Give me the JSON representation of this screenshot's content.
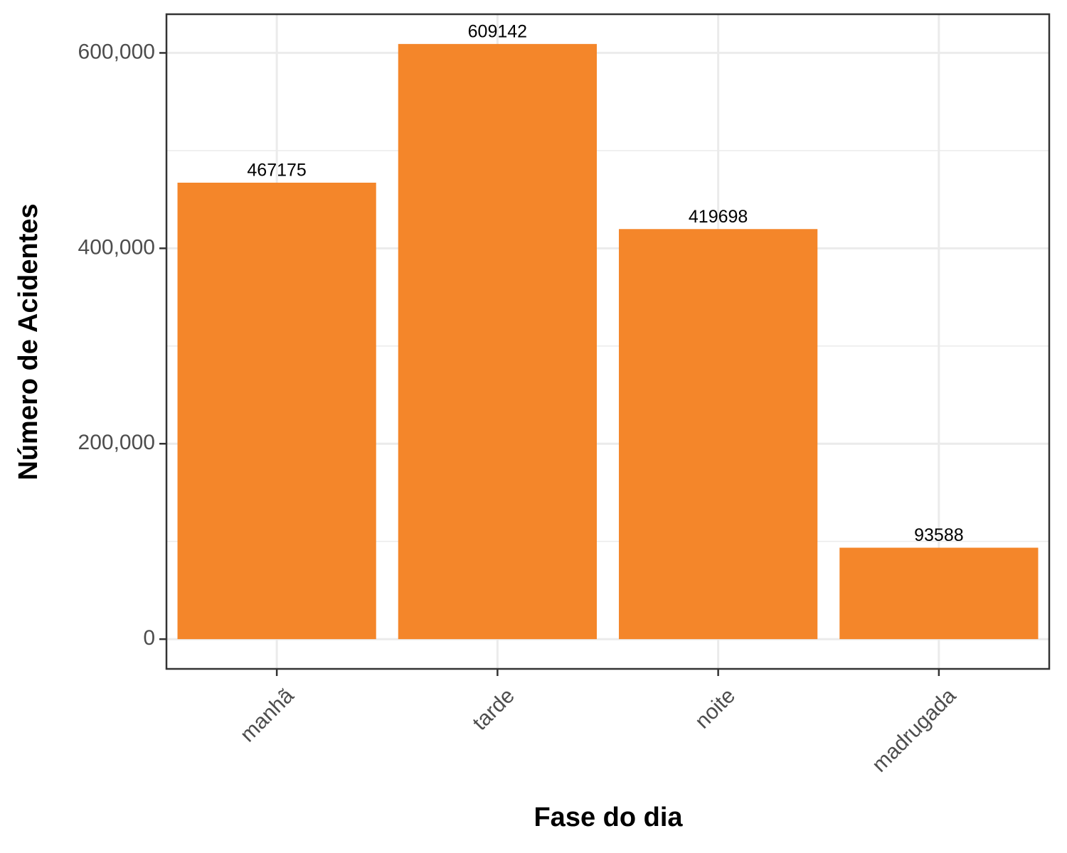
{
  "chart_data": {
    "type": "bar",
    "x_label": "Fase do dia",
    "y_label": "Número de Acidentes",
    "categories": [
      "manhã",
      "tarde",
      "noite",
      "madrugada"
    ],
    "values": [
      467175,
      609142,
      419698,
      93588
    ],
    "color": "#f4862a",
    "ylim": [
      -30457,
      639599
    ],
    "yticks": [
      {
        "value": 0,
        "label": "0"
      },
      {
        "value": 200000,
        "label": "200,000"
      },
      {
        "value": 400000,
        "label": "400,000"
      },
      {
        "value": 600000,
        "label": "600,000"
      }
    ],
    "minor_yticks": [
      100000,
      300000,
      500000
    ],
    "grid": true
  }
}
